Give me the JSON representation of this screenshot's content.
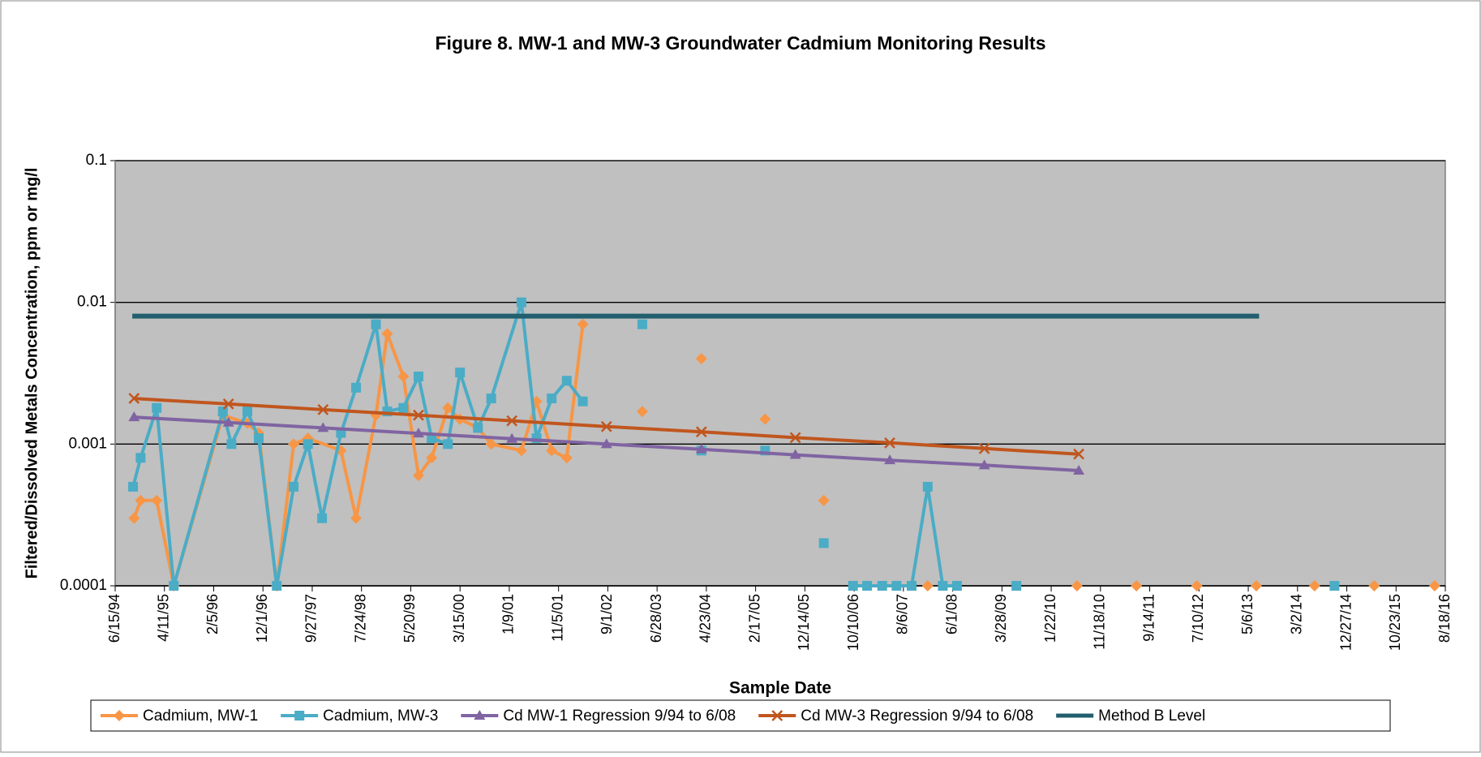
{
  "chart_data": {
    "type": "line",
    "title": "Figure 8. MW-1 and MW-3 Groundwater Cadmium Monitoring Results",
    "xlabel": "Sample Date",
    "ylabel": "Filtered/Dissolved Metals Concentration, ppm or mg/l",
    "log_y": true,
    "grid": true,
    "legend": "bottom",
    "background": "#c0c0c0",
    "ylim": [
      0.0001,
      0.1
    ],
    "yticks": [
      0.1,
      0.01,
      0.001,
      0.0001
    ],
    "xlim": [
      "1994-06-15",
      "2016-08-18"
    ],
    "xticks": [
      {
        "value": "1994-06-15",
        "label": "6/15/94"
      },
      {
        "value": "1995-04-11",
        "label": "4/11/95"
      },
      {
        "value": "1996-02-05",
        "label": "2/5/96"
      },
      {
        "value": "1996-12-01",
        "label": "12/1/96"
      },
      {
        "value": "1997-09-27",
        "label": "9/27/97"
      },
      {
        "value": "1998-07-24",
        "label": "7/24/98"
      },
      {
        "value": "1999-05-20",
        "label": "5/20/99"
      },
      {
        "value": "2000-03-15",
        "label": "3/15/00"
      },
      {
        "value": "2001-01-09",
        "label": "1/9/01"
      },
      {
        "value": "2001-11-05",
        "label": "11/5/01"
      },
      {
        "value": "2002-09-01",
        "label": "9/1/02"
      },
      {
        "value": "2003-06-28",
        "label": "6/28/03"
      },
      {
        "value": "2004-04-23",
        "label": "4/23/04"
      },
      {
        "value": "2005-02-17",
        "label": "2/17/05"
      },
      {
        "value": "2005-12-14",
        "label": "12/14/05"
      },
      {
        "value": "2006-10-10",
        "label": "10/10/06"
      },
      {
        "value": "2007-08-06",
        "label": "8/6/07"
      },
      {
        "value": "2008-06-01",
        "label": "6/1/08"
      },
      {
        "value": "2009-03-28",
        "label": "3/28/09"
      },
      {
        "value": "2010-01-22",
        "label": "1/22/10"
      },
      {
        "value": "2010-11-18",
        "label": "11/18/10"
      },
      {
        "value": "2011-09-14",
        "label": "9/14/11"
      },
      {
        "value": "2012-07-10",
        "label": "7/10/12"
      },
      {
        "value": "2013-05-06",
        "label": "5/6/13"
      },
      {
        "value": "2014-03-02",
        "label": "3/2/14"
      },
      {
        "value": "2014-12-27",
        "label": "12/27/14"
      },
      {
        "value": "2015-10-23",
        "label": "10/23/15"
      },
      {
        "value": "2016-08-18",
        "label": "8/18/16"
      }
    ],
    "series": [
      {
        "name": "Cadmium, MW-1",
        "color": "#f79646",
        "marker": "diamond",
        "x": [
          "1994-10-08",
          "1994-11-17",
          "1995-02-23",
          "1995-06-07",
          "1996-04-01",
          "1996-08-28",
          "1996-11-05",
          "1997-02-23",
          "1997-06-06",
          "1997-09-01",
          "1998-03-21",
          "1998-06-21",
          "1998-10-20",
          "1998-12-28",
          "1999-04-05",
          "1999-07-06",
          "1999-09-24",
          "2000-01-01",
          "2000-03-15",
          "2000-07-02",
          "2000-09-21",
          "2001-03-24",
          "2001-06-24",
          "2001-09-24",
          "2001-12-25",
          "2002-04-02",
          null,
          "2003-03-30",
          null,
          "2004-03-24",
          null,
          "2005-04-16",
          null,
          "2006-04-08",
          null,
          "2008-01-01",
          null,
          "2010-06-28",
          null,
          "2011-06-25",
          null,
          "2012-06-27",
          null,
          "2013-06-24",
          null,
          "2014-06-14",
          null,
          "2015-06-12",
          null,
          "2016-06-14"
        ],
        "values": [
          0.0003,
          0.0004,
          0.0004,
          0.0001,
          0.0016,
          0.0014,
          0.0012,
          0.0001,
          0.001,
          0.0011,
          0.0009,
          0.0003,
          0.0016,
          0.006,
          0.003,
          0.0006,
          0.0008,
          0.0018,
          0.0015,
          0.0013,
          0.001,
          0.0009,
          0.002,
          0.0009,
          0.0008,
          0.007,
          null,
          0.0017,
          null,
          0.004,
          null,
          0.0015,
          null,
          0.0004,
          null,
          0.0001,
          null,
          0.0001,
          null,
          0.0001,
          null,
          0.0001,
          null,
          0.0001,
          null,
          0.0001,
          null,
          0.0001,
          null,
          0.0001
        ]
      },
      {
        "name": "Cadmium, MW-3",
        "color": "#4bacc6",
        "marker": "square",
        "x": [
          "1994-10-02",
          "1994-11-17",
          "1995-02-23",
          "1995-06-07",
          "1996-04-01",
          "1996-05-23",
          "1996-08-28",
          "1996-11-05",
          "1997-02-23",
          "1997-06-06",
          "1997-09-01",
          "1997-11-26",
          "1998-03-21",
          "1998-06-21",
          "1998-10-20",
          "1998-12-28",
          "1999-04-05",
          "1999-07-06",
          "1999-09-24",
          "2000-01-01",
          "2000-03-15",
          "2000-07-02",
          "2000-09-21",
          "2001-03-24",
          "2001-06-24",
          "2001-09-24",
          "2001-12-25",
          "2002-04-02",
          null,
          "2003-03-30",
          null,
          "2004-03-24",
          null,
          "2005-04-16",
          null,
          "2006-04-08",
          null,
          "2006-10-03",
          "2006-12-28",
          "2007-03-30",
          "2007-06-25",
          "2007-09-25",
          "2008-01-01",
          "2008-04-02",
          "2008-06-27",
          null,
          "2009-06-24",
          null,
          "2014-10-13"
        ],
        "values": [
          0.0005,
          0.0008,
          0.0018,
          0.0001,
          0.0017,
          0.001,
          0.0017,
          0.0011,
          0.0001,
          0.0005,
          0.001,
          0.0003,
          0.0012,
          0.0025,
          0.007,
          0.0017,
          0.0018,
          0.003,
          0.0011,
          0.001,
          0.0032,
          0.0013,
          0.0021,
          0.01,
          0.0011,
          0.0021,
          0.0028,
          0.002,
          null,
          0.007,
          null,
          0.0009,
          null,
          0.0009,
          null,
          0.0002,
          null,
          0.0001,
          0.0001,
          0.0001,
          0.0001,
          0.0001,
          0.0005,
          0.0001,
          0.0001,
          null,
          0.0001,
          null,
          0.0001
        ]
      },
      {
        "name": "Cd MW-1  Regression 9/94 to 6/08",
        "color": "#8064a2",
        "marker": "triangle",
        "x": [
          "1994-10-08",
          "1996-05-05",
          "1997-12-02",
          "1999-07-06",
          "2001-01-25",
          "2002-08-24",
          "2004-03-24",
          "2005-10-17",
          "2007-05-15",
          "2008-12-11",
          "2010-07-09"
        ],
        "values": [
          0.00155,
          0.00142,
          0.0013,
          0.00119,
          0.00109,
          0.001,
          0.00092,
          0.00084,
          0.00077,
          0.00071,
          0.00065
        ]
      },
      {
        "name": "Cd MW-3  Regression 9/94 to 6/08",
        "color": "#c0561e",
        "marker": "x",
        "x": [
          "1994-10-08",
          "1996-05-05",
          "1997-12-02",
          "1999-07-06",
          "2001-01-25",
          "2002-08-24",
          "2004-03-24",
          "2005-10-17",
          "2007-05-15",
          "2008-12-11",
          "2010-07-09"
        ],
        "values": [
          0.0021,
          0.00192,
          0.00175,
          0.0016,
          0.00146,
          0.00133,
          0.00122,
          0.00111,
          0.00102,
          0.00093,
          0.00085
        ]
      },
      {
        "name": "Method B Level",
        "color": "#215f6e",
        "marker": "none",
        "x": [
          "1994-09-27",
          "2013-07-11"
        ],
        "values": [
          0.008,
          0.008
        ]
      }
    ]
  }
}
